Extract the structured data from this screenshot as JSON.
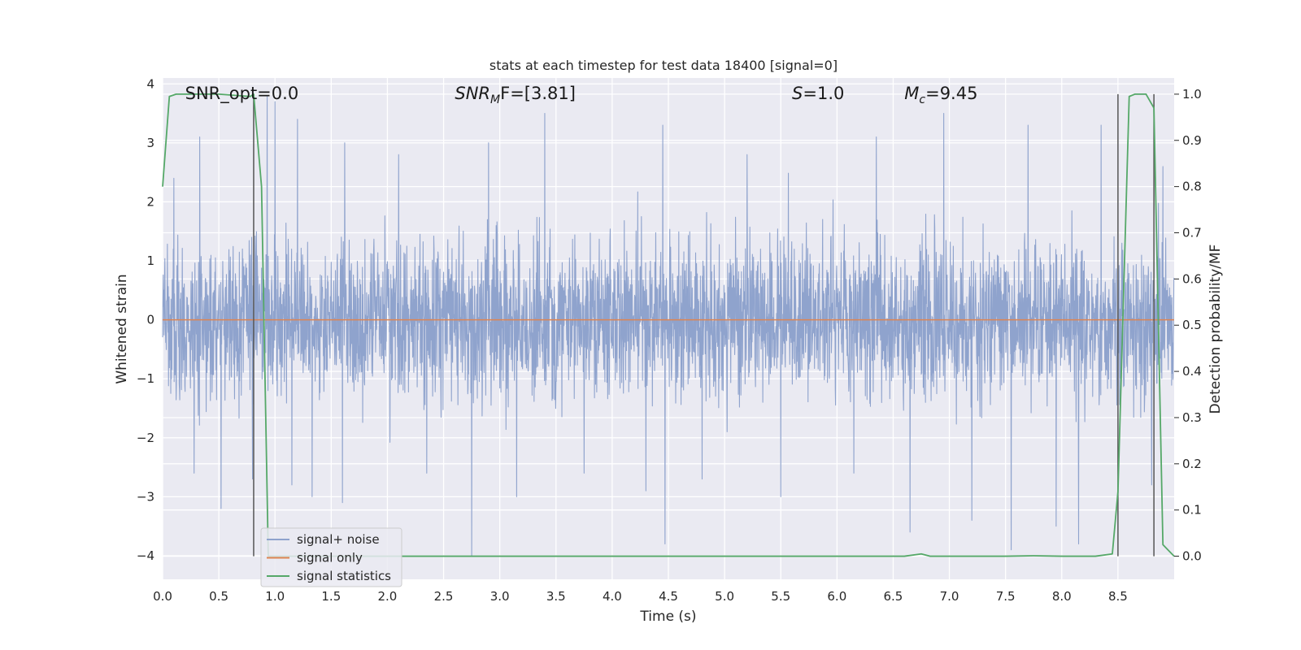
{
  "chart_data": {
    "type": "line",
    "title": "stats at each timestep for test data 18400 [signal=0]",
    "xlabel": "Time (s)",
    "ylabel": "Whitened strain",
    "y2label": "Detection probability/MF",
    "xlim": [
      0.0,
      9.0
    ],
    "ylim": [
      -4.4,
      4.1
    ],
    "y2lim": [
      -0.05,
      1.035
    ],
    "xticks": [
      "0.0",
      "0.5",
      "1.0",
      "1.5",
      "2.0",
      "2.5",
      "3.0",
      "3.5",
      "4.0",
      "4.5",
      "5.0",
      "5.5",
      "6.0",
      "6.5",
      "7.0",
      "7.5",
      "8.0",
      "8.5"
    ],
    "yticks": [
      "4",
      "3",
      "2",
      "1",
      "0",
      "−1",
      "−2",
      "−3",
      "−4"
    ],
    "y2ticks": [
      "1.0",
      "0.9",
      "0.8",
      "0.7",
      "0.6",
      "0.5",
      "0.4",
      "0.3",
      "0.2",
      "0.1",
      "0.0"
    ],
    "grid": true,
    "legend_position": "bottom-left",
    "annotations": [
      {
        "base": "SNR_opt=0.0",
        "sub": "",
        "rest": "",
        "x": 0.2,
        "y": 3.85
      },
      {
        "base": "SNR",
        "sub": "M",
        "rest": "F=[3.81]",
        "x": 2.6,
        "y": 3.85
      },
      {
        "base": "S",
        "sub": "",
        "rest": "=1.0",
        "x": 5.6,
        "y": 3.85
      },
      {
        "base": "M",
        "sub": "c",
        "rest": "=9.45",
        "x": 6.6,
        "y": 3.85
      }
    ],
    "vertical_markers": [
      0.81,
      8.5,
      8.82
    ],
    "series": [
      {
        "name": "signal+ noise",
        "color": "#8fa3cd",
        "style": "noise",
        "sample_rate_hz": 400,
        "typical_band": [
          -1.5,
          1.5
        ],
        "peaks": [
          {
            "x": 0.1,
            "y": 2.4
          },
          {
            "x": 0.28,
            "y": -2.6
          },
          {
            "x": 0.33,
            "y": 3.1
          },
          {
            "x": 0.52,
            "y": -3.2
          },
          {
            "x": 0.8,
            "y": 3.1
          },
          {
            "x": 0.8,
            "y": -2.7
          },
          {
            "x": 0.93,
            "y": 3.8
          },
          {
            "x": 1.0,
            "y": 3.7
          },
          {
            "x": 1.15,
            "y": -2.8
          },
          {
            "x": 1.2,
            "y": 3.4
          },
          {
            "x": 1.33,
            "y": -3.0
          },
          {
            "x": 1.6,
            "y": -3.1
          },
          {
            "x": 1.62,
            "y": 3.0
          },
          {
            "x": 2.1,
            "y": 2.8
          },
          {
            "x": 2.35,
            "y": -2.6
          },
          {
            "x": 2.75,
            "y": -4.0
          },
          {
            "x": 2.9,
            "y": 3.0
          },
          {
            "x": 3.15,
            "y": -3.0
          },
          {
            "x": 3.4,
            "y": 3.5
          },
          {
            "x": 3.75,
            "y": -2.6
          },
          {
            "x": 4.3,
            "y": -2.9
          },
          {
            "x": 4.45,
            "y": 3.3
          },
          {
            "x": 4.47,
            "y": -3.8
          },
          {
            "x": 4.8,
            "y": -2.7
          },
          {
            "x": 5.2,
            "y": 2.8
          },
          {
            "x": 5.5,
            "y": -3.0
          },
          {
            "x": 6.15,
            "y": -2.6
          },
          {
            "x": 6.35,
            "y": 3.1
          },
          {
            "x": 6.65,
            "y": -3.6
          },
          {
            "x": 6.95,
            "y": 3.5
          },
          {
            "x": 7.2,
            "y": -3.4
          },
          {
            "x": 7.55,
            "y": -3.9
          },
          {
            "x": 7.7,
            "y": 3.3
          },
          {
            "x": 7.95,
            "y": -3.5
          },
          {
            "x": 8.15,
            "y": -3.8
          },
          {
            "x": 8.35,
            "y": 3.3
          },
          {
            "x": 8.8,
            "y": -2.8
          },
          {
            "x": 8.9,
            "y": 2.6
          }
        ]
      },
      {
        "name": "signal only",
        "color": "#dd8452",
        "style": "flat",
        "y": 0.0
      },
      {
        "name": "signal statistics",
        "color": "#55a868",
        "axis": "right",
        "x": [
          0.0,
          0.06,
          0.12,
          0.2,
          0.5,
          0.78,
          0.81,
          0.88,
          0.94,
          1.0,
          2.0,
          4.0,
          6.0,
          6.6,
          6.75,
          6.83,
          7.5,
          7.75,
          8.0,
          8.3,
          8.45,
          8.5,
          8.6,
          8.65,
          8.75,
          8.82,
          8.9,
          9.0
        ],
        "values": [
          0.8,
          0.995,
          1.0,
          1.0,
          1.0,
          0.995,
          1.0,
          0.8,
          0.0,
          0.0,
          0.0,
          0.0,
          0.0,
          0.0,
          0.005,
          0.0,
          0.0,
          0.001,
          0.0,
          0.0,
          0.005,
          0.14,
          0.995,
          1.0,
          1.0,
          0.97,
          0.025,
          0.0
        ]
      }
    ]
  }
}
